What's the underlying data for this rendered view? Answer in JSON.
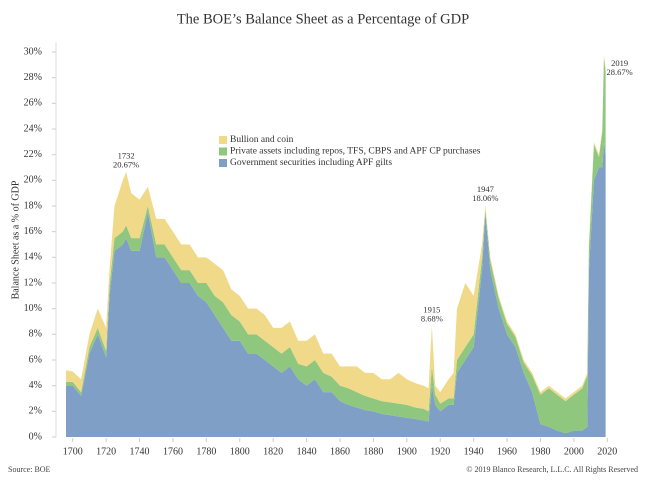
{
  "chart_data": {
    "type": "stacked_area",
    "title": "The BOE’s Balance Sheet as a Percentage of GDP",
    "y_label": "Balance Sheet as a % of GDP",
    "source": "Source: BOE",
    "copyright": "© 2019 Blanco Research, L.L.C. All Rights Reserved",
    "x": [
      1696,
      1700,
      1705,
      1710,
      1715,
      1720,
      1722,
      1725,
      1730,
      1732,
      1735,
      1740,
      1745,
      1750,
      1755,
      1760,
      1765,
      1770,
      1775,
      1780,
      1785,
      1790,
      1795,
      1800,
      1805,
      1810,
      1815,
      1820,
      1825,
      1830,
      1835,
      1840,
      1845,
      1850,
      1855,
      1860,
      1865,
      1870,
      1875,
      1880,
      1885,
      1890,
      1895,
      1900,
      1905,
      1910,
      1913,
      1915,
      1917,
      1920,
      1925,
      1928,
      1930,
      1935,
      1940,
      1945,
      1947,
      1950,
      1955,
      1960,
      1965,
      1970,
      1975,
      1980,
      1985,
      1990,
      1995,
      2000,
      2005,
      2008,
      2009,
      2012,
      2015,
      2017,
      2018,
      2019
    ],
    "series": [
      {
        "name": "Bullion and coin",
        "color": "#f1d98a",
        "values": [
          0.9,
          0.8,
          1.0,
          1.0,
          1.5,
          1.8,
          1.2,
          2.5,
          4,
          4.17,
          3.5,
          3,
          1.5,
          2,
          2,
          2,
          2,
          2,
          2,
          2,
          2.5,
          2.5,
          2,
          2,
          2,
          2,
          2,
          1.5,
          2,
          2,
          1.8,
          2,
          2,
          1.5,
          1.8,
          1.5,
          1.7,
          2,
          1.8,
          2,
          1.7,
          1.8,
          2.4,
          2,
          1.9,
          1.8,
          1.8,
          3.18,
          0.7,
          0.9,
          1.5,
          2,
          4,
          5,
          3,
          1,
          0.26,
          0.3,
          0.2,
          0.2,
          0.2,
          0.2,
          0.2,
          0.2,
          0.2,
          0.2,
          0.2,
          0.2,
          0.2,
          0.2,
          0.2,
          0.2,
          0.2,
          0.2,
          0.2,
          0.17
        ]
      },
      {
        "name": "Private assets including repos, TFS, CBPS and APF CP purchases",
        "color": "#8fc77e",
        "values": [
          0.3,
          0.3,
          0.3,
          0.5,
          0.5,
          0.5,
          0.8,
          1,
          1,
          1,
          1,
          1,
          0.5,
          1,
          1,
          1,
          1,
          1,
          1,
          1.5,
          1.5,
          2,
          2,
          1.5,
          1.5,
          1.5,
          1.5,
          1.5,
          1.5,
          1.5,
          1.2,
          1.5,
          1.5,
          1.5,
          1.2,
          1.2,
          1.3,
          1.2,
          1.1,
          1,
          1,
          1,
          1,
          1,
          0.9,
          0.9,
          0.8,
          1.5,
          0.8,
          0.6,
          0.5,
          0.5,
          1,
          1,
          1,
          1,
          0.3,
          0.7,
          0.8,
          0.8,
          0.8,
          0.8,
          1.3,
          2.3,
          3,
          2.8,
          2.5,
          2.8,
          3.3,
          4,
          1.8,
          2.8,
          0.8,
          2.8,
          6.6,
          6.5
        ]
      },
      {
        "name": "Government securities including APF gilts",
        "color": "#809fc6",
        "values": [
          4,
          4,
          3.2,
          6.5,
          8,
          6.2,
          11,
          14.5,
          15,
          15.5,
          14.5,
          14.5,
          17.5,
          14,
          14,
          13,
          12,
          12,
          11,
          10.5,
          9.5,
          8.5,
          7.5,
          7.5,
          6.5,
          6.5,
          6,
          5.5,
          5,
          5.5,
          4.5,
          4,
          4.5,
          3.5,
          3.5,
          2.8,
          2.5,
          2.3,
          2.1,
          2,
          1.8,
          1.7,
          1.6,
          1.5,
          1.4,
          1.3,
          1.2,
          4,
          2.5,
          2,
          2.5,
          2.5,
          5,
          6,
          7,
          13,
          17.5,
          13,
          10,
          8,
          7,
          5,
          3.5,
          1,
          0.8,
          0.5,
          0.3,
          0.5,
          0.5,
          0.8,
          13,
          20,
          21,
          21,
          23,
          22
        ]
      }
    ],
    "annotations": [
      {
        "x": 1732,
        "value": 20.67,
        "label": "20.67%"
      },
      {
        "x": 1915,
        "value": 8.68,
        "label": "8.68%"
      },
      {
        "x": 1947,
        "value": 18.06,
        "label": "18.06%"
      },
      {
        "x": 2019,
        "value": 28.67,
        "label": "28.67%"
      }
    ],
    "xlim": [
      1690,
      2030
    ],
    "xticks": [
      1700,
      1720,
      1740,
      1760,
      1780,
      1800,
      1820,
      1840,
      1860,
      1880,
      1900,
      1920,
      1940,
      1960,
      1980,
      2000,
      2020
    ],
    "ylim": [
      0,
      30
    ],
    "yticks": [
      {
        "value": 0,
        "label": "0%"
      },
      {
        "value": 2,
        "label": "2%"
      },
      {
        "value": 4,
        "label": "4%"
      },
      {
        "value": 6,
        "label": "6%"
      },
      {
        "value": 8,
        "label": "8%"
      },
      {
        "value": 10,
        "label": "10%"
      },
      {
        "value": 12,
        "label": "12%"
      },
      {
        "value": 14,
        "label": "14%"
      },
      {
        "value": 16,
        "label": "16%"
      },
      {
        "value": 18,
        "label": "18%"
      },
      {
        "value": 20,
        "label": "20%"
      },
      {
        "value": 22,
        "label": "22%"
      },
      {
        "value": 24,
        "label": "24%"
      },
      {
        "value": 26,
        "label": "26%"
      },
      {
        "value": 28,
        "label": "28%"
      },
      {
        "value": 30,
        "label": "30%"
      }
    ],
    "grid": false
  }
}
